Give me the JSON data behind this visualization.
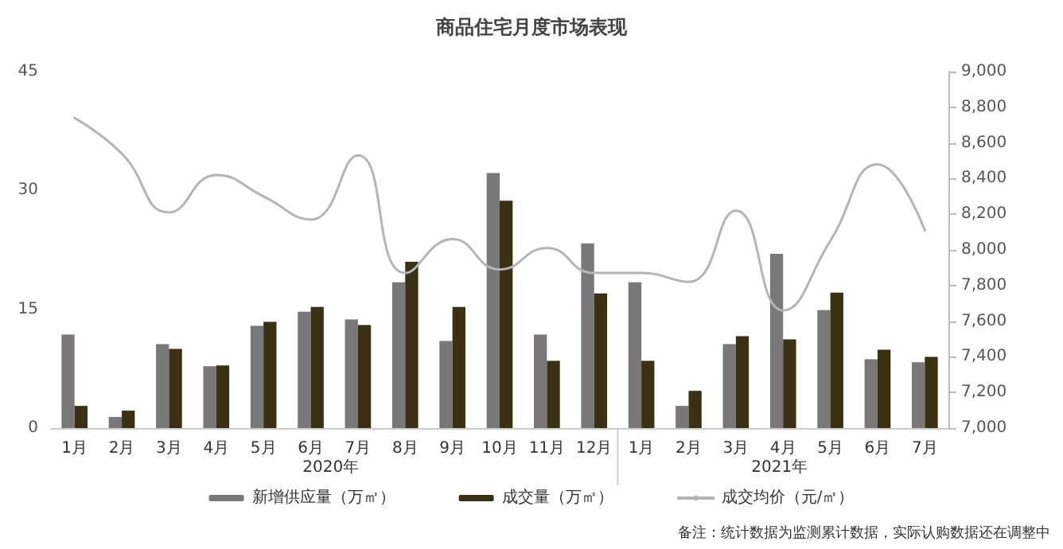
{
  "chart_data": {
    "type": "bar",
    "title": "商品住宅月度市场表现",
    "categories": [
      "1月",
      "2月",
      "3月",
      "4月",
      "5月",
      "6月",
      "7月",
      "8月",
      "9月",
      "10月",
      "11月",
      "12月",
      "1月",
      "2月",
      "3月",
      "4月",
      "5月",
      "6月",
      "7月"
    ],
    "series": [
      {
        "name": "新增供应量（万㎡）",
        "color": "#7a7778",
        "values": [
          11.8,
          1.4,
          10.6,
          7.8,
          12.9,
          14.7,
          13.7,
          18.4,
          11.0,
          32.2,
          11.8,
          23.3,
          18.4,
          2.8,
          10.6,
          22.0,
          14.9,
          8.7,
          8.3
        ]
      },
      {
        "name": "成交量（万㎡）",
        "color": "#3a3114",
        "values": [
          2.8,
          2.2,
          10.0,
          7.9,
          13.4,
          15.3,
          13.0,
          21.0,
          15.3,
          28.7,
          8.5,
          17.0,
          8.5,
          4.7,
          11.6,
          11.2,
          17.1,
          9.9,
          9.0
        ]
      },
      {
        "name": "成交均价（元/㎡）",
        "type": "line",
        "axis": "y2",
        "color": "#b5b3b6",
        "values": [
          8740,
          8540,
          8210,
          8420,
          8300,
          8170,
          8530,
          7870,
          8060,
          7890,
          8010,
          7870,
          7870,
          7820,
          8220,
          7660,
          8050,
          8480,
          8110
        ]
      }
    ],
    "ylim": [
      0,
      45
    ],
    "yticks": [
      0,
      15,
      30,
      45
    ],
    "y2lim": [
      7000,
      9000
    ],
    "y2ticks": [
      {
        "value": 7000,
        "label": "7,000"
      },
      {
        "value": 7200,
        "label": "7,200"
      },
      {
        "value": 7400,
        "label": "7,400"
      },
      {
        "value": 7600,
        "label": "7,600"
      },
      {
        "value": 7800,
        "label": "7,800"
      },
      {
        "value": 8000,
        "label": "8,000"
      },
      {
        "value": 8200,
        "label": "8,200"
      },
      {
        "value": 8400,
        "label": "8,400"
      },
      {
        "value": 8600,
        "label": "8,600"
      },
      {
        "value": 8800,
        "label": "8,800"
      },
      {
        "value": 9000,
        "label": "9,000"
      }
    ],
    "annotations": [
      "2020年",
      "2021年",
      "备注：统计数据为监测累计数据，实际认购数据还在调整中"
    ],
    "grid": false,
    "legend": "bottom",
    "marker": "none",
    "line_style": "solid"
  }
}
